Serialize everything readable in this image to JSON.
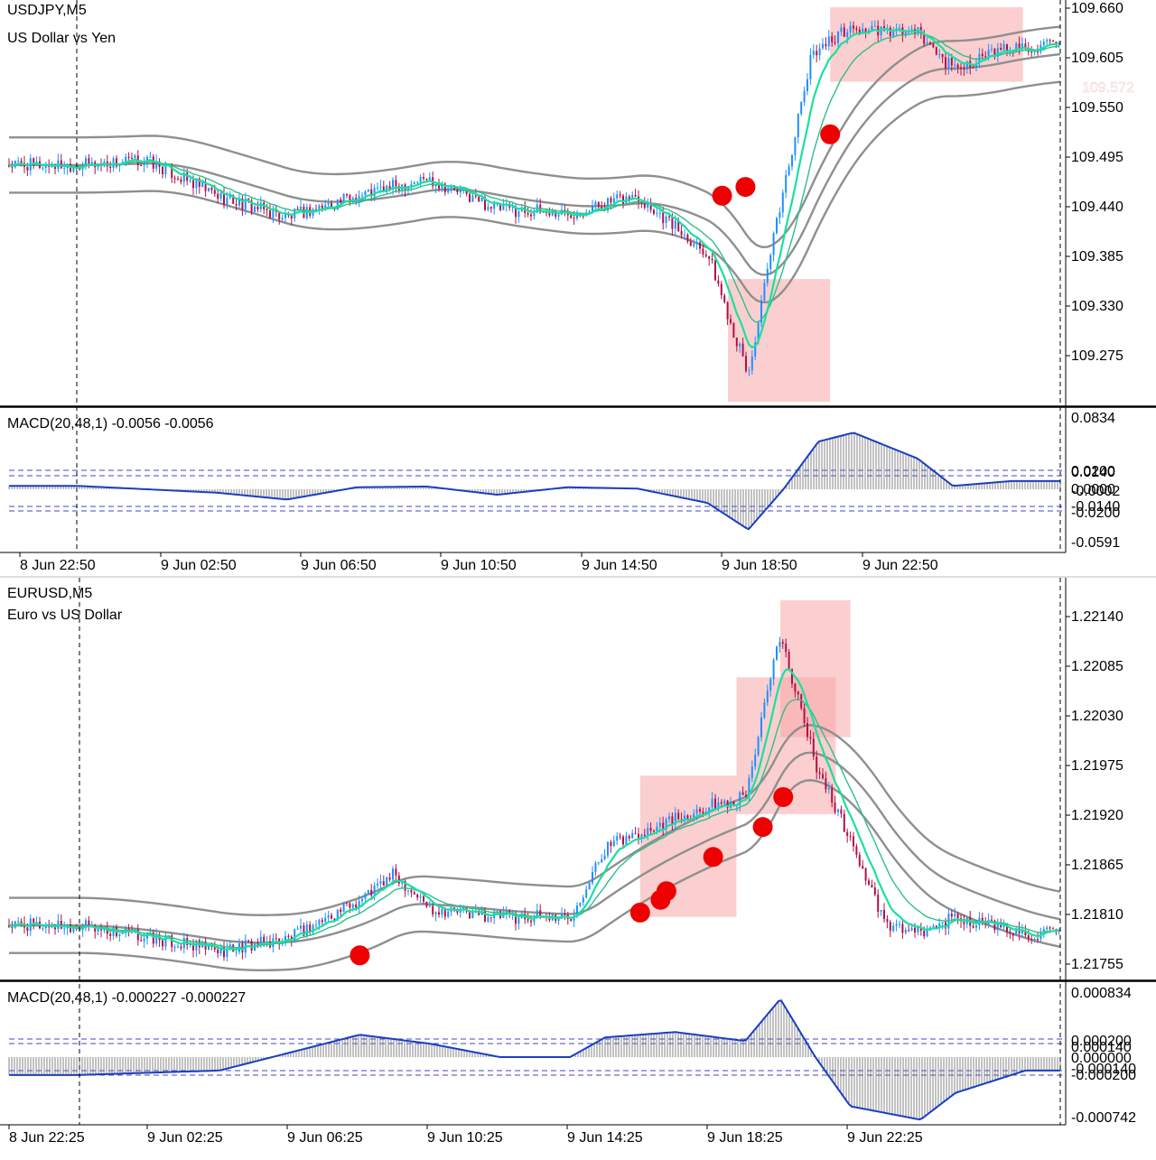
{
  "colors": {
    "bull": "#1e90ff",
    "bear": "#b0104a",
    "ema_fast": "#19e0a0",
    "ema_slow": "#2fbf8a",
    "band": "#8f8f8f",
    "macd_line": "#1a3fc0",
    "macd_hist": "#777777",
    "level_line": "#4444cc",
    "highlight": "#f7a8a8",
    "signal_dot": "#ee0000"
  },
  "charts": [
    {
      "symbol": "USDJPY,M5",
      "description": "US Dollar vs Yen",
      "price_axis": {
        "ticks": [
          "109.660",
          "109.605",
          "109.550",
          "109.495",
          "109.440",
          "109.385",
          "109.330",
          "109.275"
        ],
        "current_price_label": "109.572"
      },
      "macd": {
        "label": "MACD(20,48,1) -0.0056 -0.0056",
        "axis_ticks": [
          "0.0834",
          "0.0200",
          "0.0140",
          "0.0000",
          "-0.0002",
          "-0.0140",
          "-0.0200",
          "-0.0591"
        ]
      },
      "time_labels": [
        "8 Jun 22:50",
        "9 Jun 02:50",
        "9 Jun 06:50",
        "9 Jun 10:50",
        "9 Jun 14:50",
        "9 Jun 18:50",
        "9 Jun 22:50"
      ]
    },
    {
      "symbol": "EURUSD,M5",
      "description": "Euro vs US Dollar",
      "price_axis": {
        "ticks": [
          "1.22140",
          "1.22085",
          "1.22030",
          "1.21975",
          "1.21920",
          "1.21865",
          "1.21810",
          "1.21755"
        ]
      },
      "macd": {
        "label": "MACD(20,48,1) -0.000227 -0.000227",
        "axis_ticks": [
          "0.000834",
          "0.000200",
          "0.000140",
          "0.000000",
          "-0.000140",
          "-0.000200",
          "-0.000742"
        ]
      },
      "time_labels": [
        "8 Jun 22:25",
        "9 Jun 02:25",
        "9 Jun 06:25",
        "9 Jun 10:25",
        "9 Jun 14:25",
        "9 Jun 18:25",
        "9 Jun 22:25"
      ]
    }
  ],
  "chart_data": [
    {
      "type": "candlestick",
      "title": "USDJPY,M5",
      "subtitle": "US Dollar vs Yen",
      "timeframe": "M5",
      "ylim": [
        109.22,
        109.67
      ],
      "close_series": [
        {
          "t": "8 Jun 22:50",
          "price": 109.49
        },
        {
          "t": "9 Jun 00:50",
          "price": 109.495
        },
        {
          "t": "9 Jun 02:50",
          "price": 109.455
        },
        {
          "t": "9 Jun 04:50",
          "price": 109.43
        },
        {
          "t": "9 Jun 06:50",
          "price": 109.455
        },
        {
          "t": "9 Jun 08:50",
          "price": 109.475
        },
        {
          "t": "9 Jun 10:50",
          "price": 109.44
        },
        {
          "t": "9 Jun 12:50",
          "price": 109.435
        },
        {
          "t": "9 Jun 14:50",
          "price": 109.455
        },
        {
          "t": "9 Jun 16:50",
          "price": 109.39
        },
        {
          "t": "9 Jun 18:00",
          "price": 109.25
        },
        {
          "t": "9 Jun 18:50",
          "price": 109.43
        },
        {
          "t": "9 Jun 19:50",
          "price": 109.62
        },
        {
          "t": "9 Jun 20:50",
          "price": 109.645
        },
        {
          "t": "9 Jun 22:50",
          "price": 109.64
        },
        {
          "t": "9 Jun 23:50",
          "price": 109.6
        },
        {
          "t": "10 Jun 01:30",
          "price": 109.625
        }
      ],
      "macd_hist": [
        {
          "t": "8 Jun 22:50",
          "value": 0.005
        },
        {
          "t": "9 Jun 02:50",
          "value": -0.005
        },
        {
          "t": "9 Jun 04:50",
          "value": -0.015
        },
        {
          "t": "9 Jun 06:50",
          "value": 0.003
        },
        {
          "t": "9 Jun 08:50",
          "value": 0.004
        },
        {
          "t": "9 Jun 10:50",
          "value": -0.008
        },
        {
          "t": "9 Jun 12:50",
          "value": 0.003
        },
        {
          "t": "9 Jun 14:50",
          "value": 0.001
        },
        {
          "t": "9 Jun 16:50",
          "value": -0.02
        },
        {
          "t": "9 Jun 18:00",
          "value": -0.059
        },
        {
          "t": "9 Jun 19:00",
          "value": 0.0
        },
        {
          "t": "9 Jun 20:00",
          "value": 0.07
        },
        {
          "t": "9 Jun 21:00",
          "value": 0.083
        },
        {
          "t": "9 Jun 22:50",
          "value": 0.045
        },
        {
          "t": "9 Jun 23:50",
          "value": 0.005
        },
        {
          "t": "10 Jun 01:30",
          "value": 0.012
        }
      ],
      "signal_dots": [
        {
          "t": "9 Jun 17:15",
          "price": 109.455
        },
        {
          "t": "9 Jun 17:55",
          "price": 109.465
        },
        {
          "t": "9 Jun 20:20",
          "price": 109.525
        }
      ],
      "highlight_zones": [
        {
          "from": "9 Jun 17:25",
          "to": "9 Jun 20:20",
          "price_low": 109.22,
          "price_high": 109.36
        },
        {
          "from": "9 Jun 20:20",
          "to": "9 Jun 23:00",
          "price_low": 109.585,
          "price_high": 109.67
        },
        {
          "from": "9 Jun 23:00",
          "to": "10 Jun 01:50",
          "price_low": 109.585,
          "price_high": 109.67
        }
      ]
    },
    {
      "type": "candlestick",
      "title": "EURUSD,M5",
      "subtitle": "Euro vs US Dollar",
      "timeframe": "M5",
      "ylim": [
        1.2172,
        1.2218
      ],
      "close_series": [
        {
          "t": "8 Jun 22:25",
          "price": 1.2178
        },
        {
          "t": "9 Jun 00:25",
          "price": 1.21765
        },
        {
          "t": "9 Jun 02:25",
          "price": 1.2175
        },
        {
          "t": "9 Jun 04:25",
          "price": 1.21765
        },
        {
          "t": "9 Jun 06:25",
          "price": 1.2181
        },
        {
          "t": "9 Jun 07:25",
          "price": 1.2184
        },
        {
          "t": "9 Jun 08:25",
          "price": 1.218
        },
        {
          "t": "9 Jun 10:25",
          "price": 1.2179
        },
        {
          "t": "9 Jun 12:25",
          "price": 1.2179
        },
        {
          "t": "9 Jun 13:25",
          "price": 1.2187
        },
        {
          "t": "9 Jun 14:25",
          "price": 1.2189
        },
        {
          "t": "9 Jun 16:25",
          "price": 1.2192
        },
        {
          "t": "9 Jun 17:25",
          "price": 1.2193
        },
        {
          "t": "9 Jun 18:25",
          "price": 1.2212
        },
        {
          "t": "9 Jun 19:25",
          "price": 1.2197
        },
        {
          "t": "9 Jun 20:25",
          "price": 1.2188
        },
        {
          "t": "9 Jun 21:25",
          "price": 1.2178
        },
        {
          "t": "9 Jun 22:25",
          "price": 1.2177
        },
        {
          "t": "9 Jun 23:25",
          "price": 1.2179
        },
        {
          "t": "10 Jun 01:25",
          "price": 1.2177
        }
      ],
      "macd_hist": [
        {
          "t": "8 Jun 22:25",
          "value": -0.0002
        },
        {
          "t": "9 Jun 02:25",
          "value": -0.00015
        },
        {
          "t": "9 Jun 04:25",
          "value": 5e-05
        },
        {
          "t": "9 Jun 06:25",
          "value": 0.00025
        },
        {
          "t": "9 Jun 08:25",
          "value": 0.00015
        },
        {
          "t": "9 Jun 10:25",
          "value": 0.0
        },
        {
          "t": "9 Jun 12:25",
          "value": 0.0
        },
        {
          "t": "9 Jun 13:25",
          "value": 0.00022
        },
        {
          "t": "9 Jun 15:25",
          "value": 0.00028
        },
        {
          "t": "9 Jun 17:25",
          "value": 0.00018
        },
        {
          "t": "9 Jun 18:25",
          "value": 0.00065
        },
        {
          "t": "9 Jun 19:25",
          "value": 0.0
        },
        {
          "t": "9 Jun 20:25",
          "value": -0.00055
        },
        {
          "t": "9 Jun 22:25",
          "value": -0.0007
        },
        {
          "t": "9 Jun 23:25",
          "value": -0.0004
        },
        {
          "t": "10 Jun 01:25",
          "value": -0.00015
        }
      ],
      "signal_dots": [
        {
          "t": "9 Jun 06:25",
          "price": 1.21745
        },
        {
          "t": "9 Jun 14:25",
          "price": 1.21795
        },
        {
          "t": "9 Jun 15:00",
          "price": 1.2181
        },
        {
          "t": "9 Jun 15:10",
          "price": 1.2182
        },
        {
          "t": "9 Jun 16:30",
          "price": 1.2186
        },
        {
          "t": "9 Jun 17:55",
          "price": 1.21895
        },
        {
          "t": "9 Jun 18:30",
          "price": 1.2193
        }
      ],
      "highlight_zones": [
        {
          "from": "9 Jun 14:25",
          "to": "9 Jun 17:10",
          "price_low": 1.2179,
          "price_high": 1.21955
        },
        {
          "from": "9 Jun 17:10",
          "to": "9 Jun 20:00",
          "price_low": 1.2191,
          "price_high": 1.2207
        },
        {
          "from": "9 Jun 18:25",
          "to": "9 Jun 20:25",
          "price_low": 1.22,
          "price_high": 1.2216
        }
      ]
    }
  ]
}
